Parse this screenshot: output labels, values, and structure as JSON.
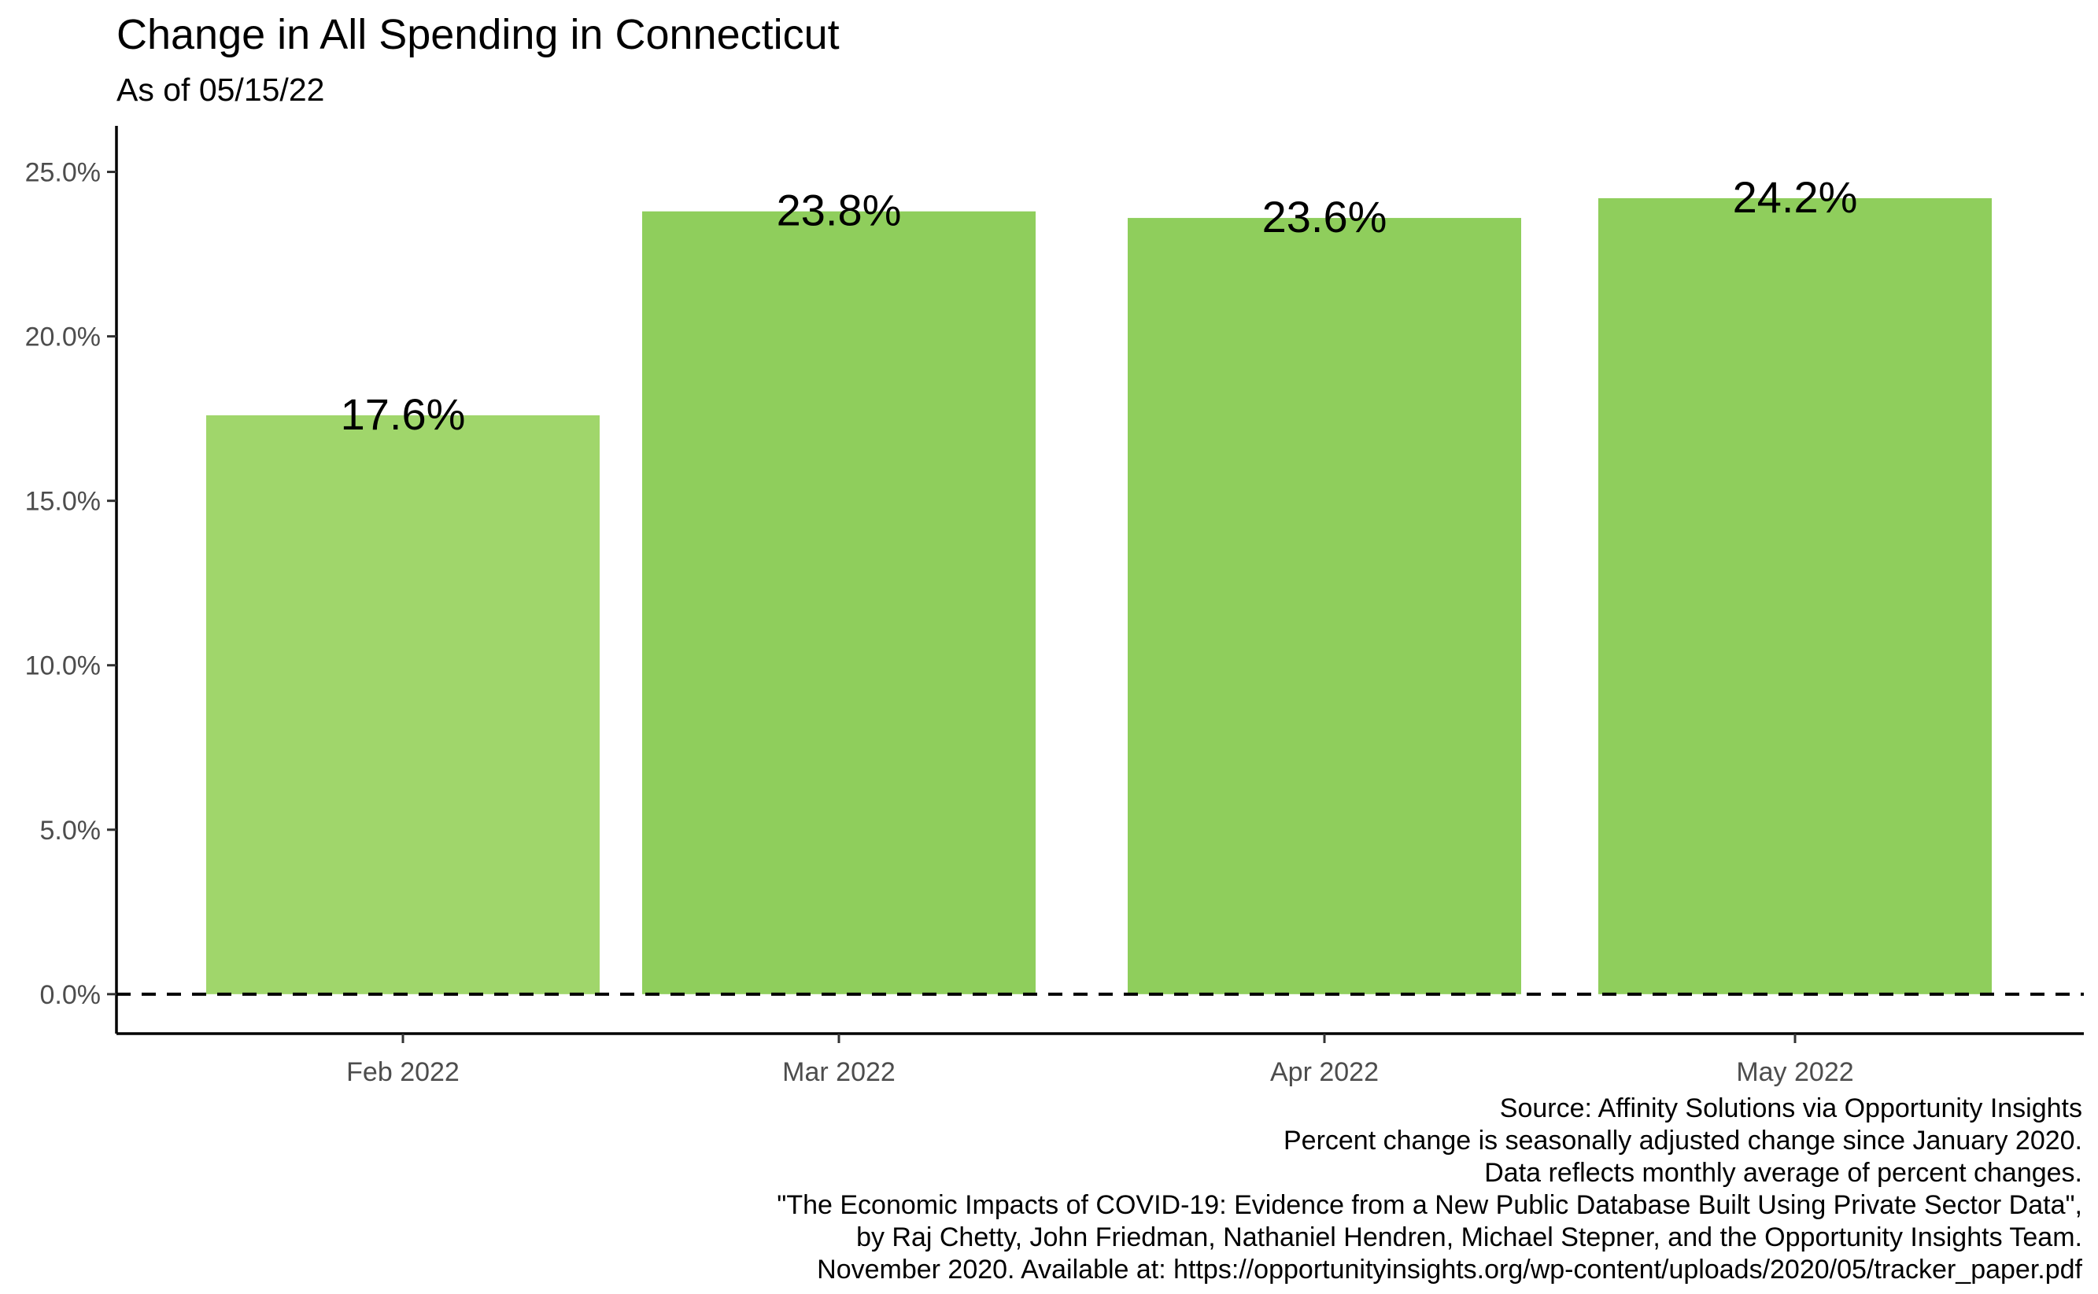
{
  "chart_data": {
    "type": "bar",
    "title": "Change in All Spending in Connecticut",
    "subtitle": "As of 05/15/22",
    "xlabel": "",
    "ylabel": "",
    "categories": [
      "Feb 2022",
      "Mar 2022",
      "Apr 2022",
      "May 2022"
    ],
    "values": [
      17.6,
      23.8,
      23.6,
      24.2
    ],
    "data_labels": [
      "17.6%",
      "23.8%",
      "23.6%",
      "24.2%"
    ],
    "bar_colors": [
      "#a0d66b",
      "#8fce5c",
      "#8fce5c",
      "#8fce5c"
    ],
    "ylim": [
      -1.2,
      26.4
    ],
    "yticks": [
      0,
      5,
      10,
      15,
      20,
      25
    ],
    "ytick_labels": [
      "0.0%",
      "5.0%",
      "10.0%",
      "15.0%",
      "20.0%",
      "25.0%"
    ],
    "reference_line": {
      "value": 0,
      "style": "dashed",
      "color": "#000000"
    },
    "grid": false,
    "legend": "none",
    "caption": [
      "Source: Affinity Solutions via Opportunity Insights",
      "Percent change is seasonally adjusted change since January 2020.",
      "Data reflects monthly average of percent changes.",
      "\"The Economic Impacts of COVID-19: Evidence from a New Public Database Built Using Private Sector Data\",",
      "by Raj Chetty, John Friedman, Nathaniel Hendren, Michael Stepner, and the Opportunity Insights Team.",
      "November 2020. Available at: https://opportunityinsights.org/wp-content/uploads/2020/05/tracker_paper.pdf"
    ]
  }
}
